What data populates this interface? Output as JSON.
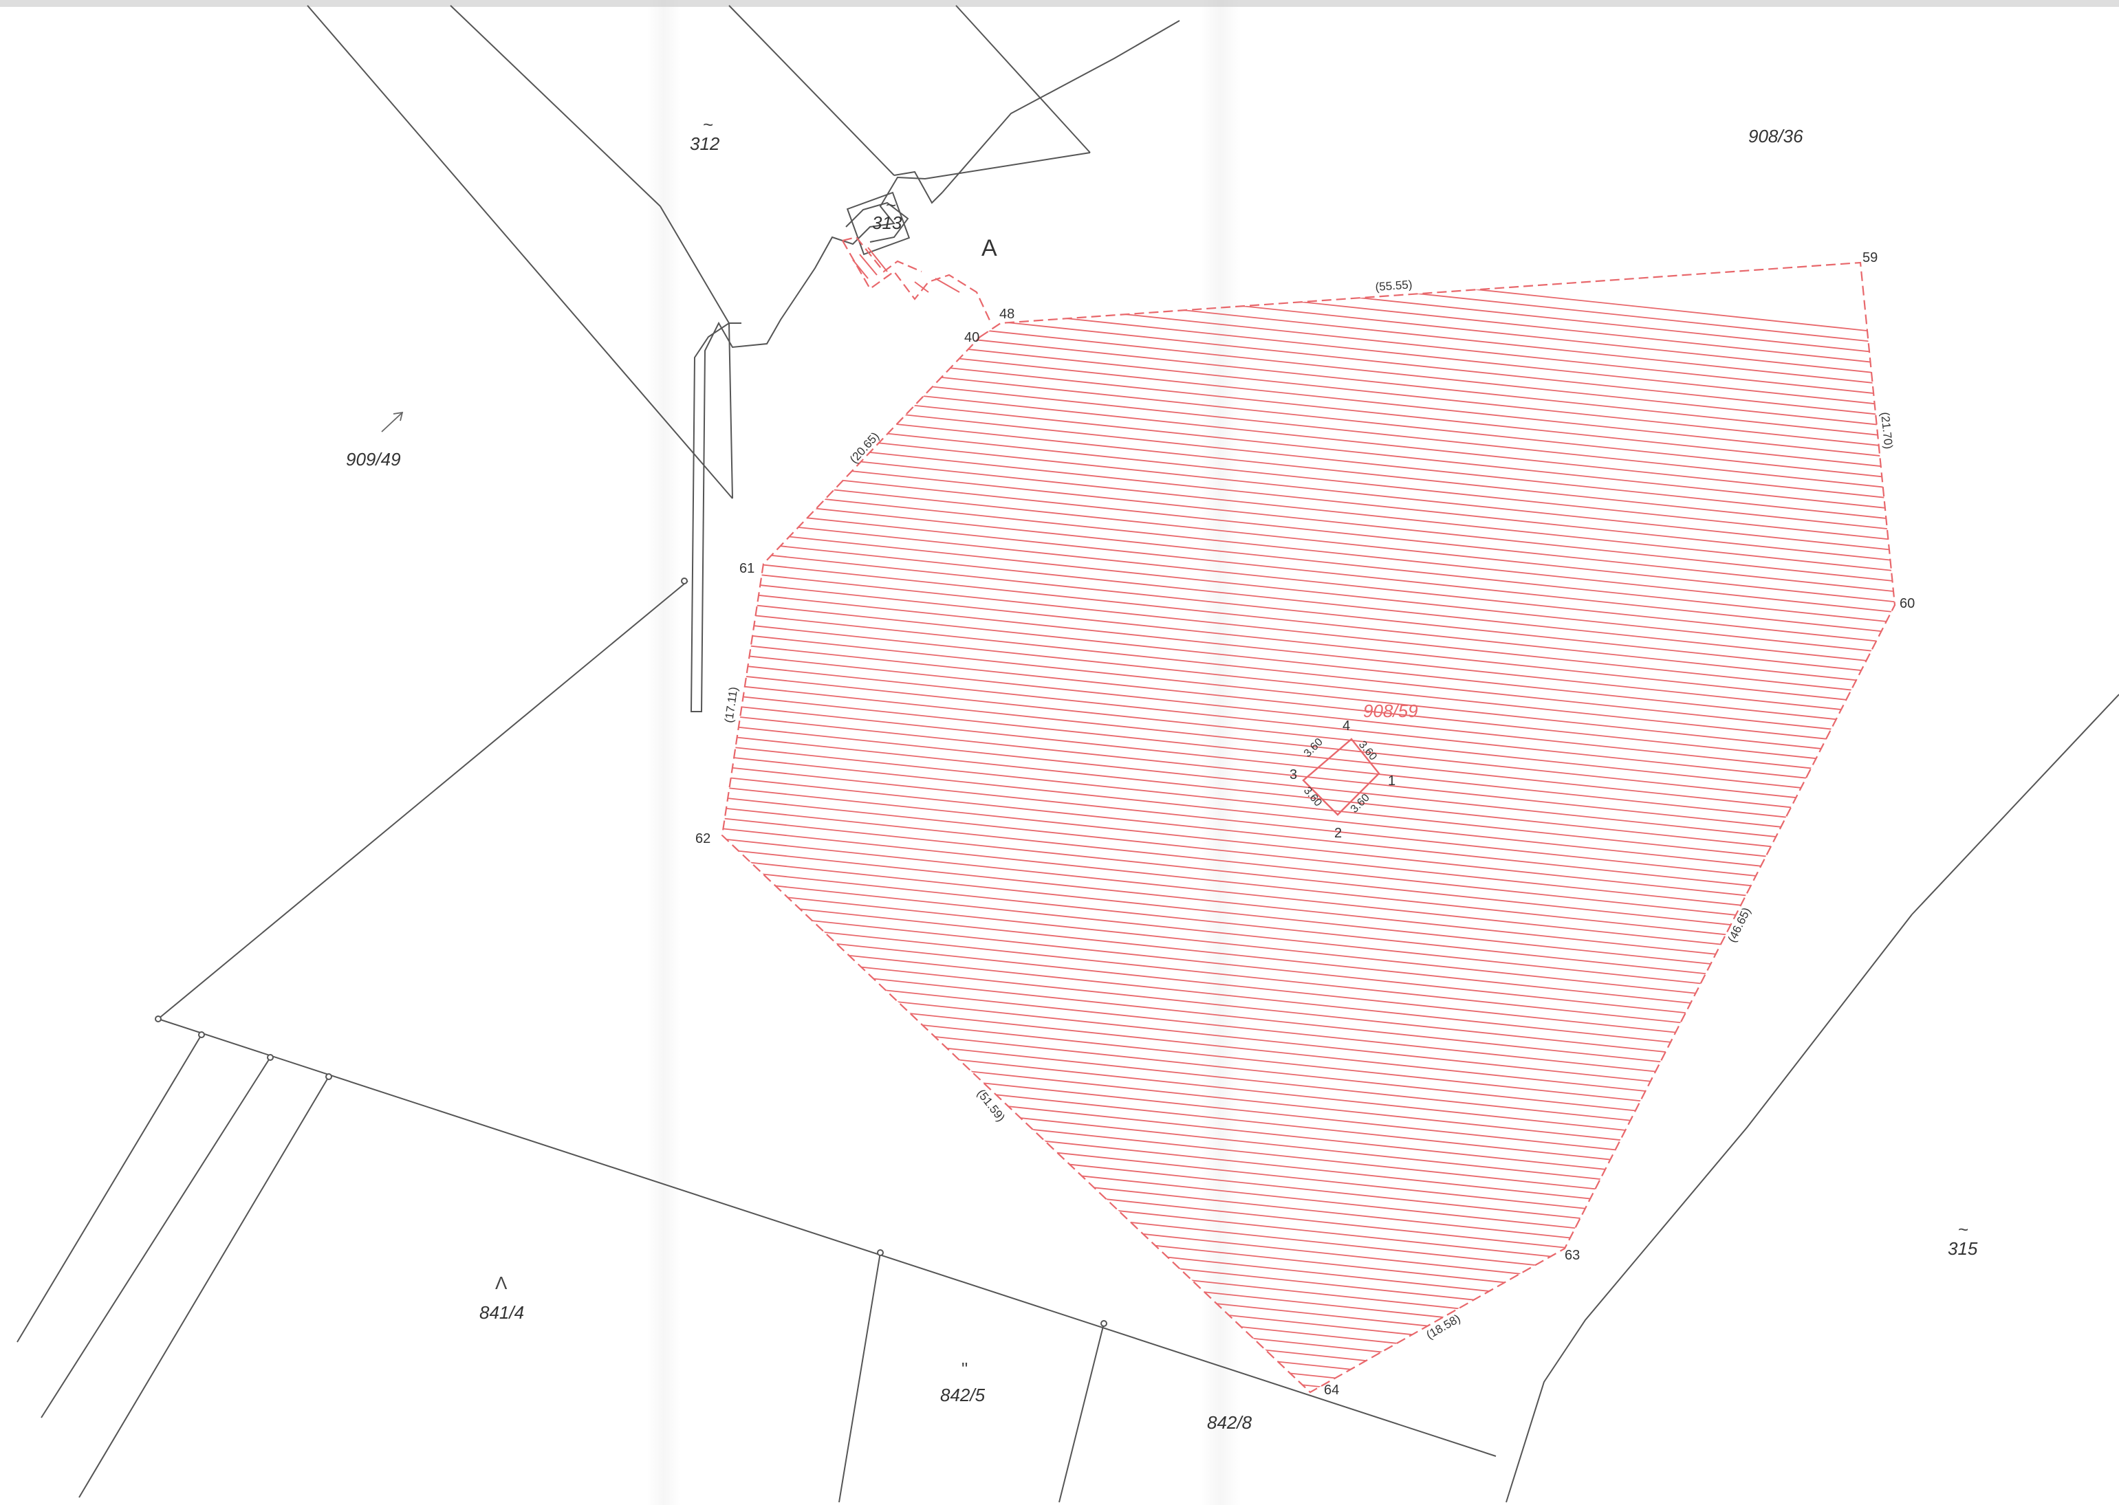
{
  "parcels": {
    "p312": "312",
    "p313": "313",
    "p908_36": "908/36",
    "p909_49": "909/49",
    "p908_59": "908/59",
    "p315": "315",
    "p841_4": "841/4",
    "p842_5": "842/5",
    "p842_8": "842/8"
  },
  "symbols": {
    "s312": "~",
    "s313": "~",
    "s315": "~",
    "s841_4": "Λ",
    "s842_5": "\""
  },
  "point_marker": "A",
  "vertices": {
    "v40": "40",
    "v48": "48",
    "v59": "59",
    "v60": "60",
    "v61": "61",
    "v62": "62",
    "v63": "63",
    "v64": "64",
    "v1": "1",
    "v2": "2",
    "v3": "3",
    "v4": "4"
  },
  "distances": {
    "d48_59": "(55.55)",
    "d59_60": "(21.70)",
    "d40_61": "(20.65)",
    "d61_62": "(17.11)",
    "d62_64": "(51.59)",
    "d60_63": "(46.65)",
    "d63_64": "(18.58)",
    "s34": "3.60",
    "s41": "3.60",
    "s32": "3.60",
    "s21": "3.60"
  },
  "colors": {
    "hatch_red": "#e8676b",
    "line_gray": "#555555",
    "background": "#ffffff"
  }
}
